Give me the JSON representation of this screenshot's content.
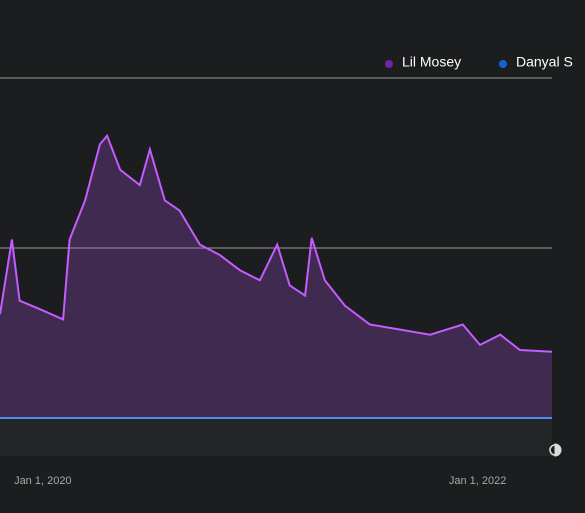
{
  "chart_data": {
    "type": "line",
    "x": [
      "2019-10-21",
      "2019-11-10",
      "2019-11-23",
      "2019-12-27",
      "2020-02-04",
      "2020-02-15",
      "2020-03-12",
      "2020-04-06",
      "2020-04-18",
      "2020-05-10",
      "2020-06-12",
      "2020-06-29",
      "2020-07-24",
      "2020-08-18",
      "2020-09-21",
      "2020-10-24",
      "2020-11-27",
      "2020-12-31",
      "2021-01-29",
      "2021-02-19",
      "2021-03-17",
      "2021-03-28",
      "2021-04-19",
      "2021-05-23",
      "2021-07-04",
      "2021-08-24",
      "2021-10-13",
      "2021-12-07",
      "2022-01-05",
      "2022-02-08",
      "2022-03-13",
      "2022-05-06"
    ],
    "series": [
      {
        "name": "Lil Mosey",
        "color": "#c45cff",
        "legend_color": "#7a1fa8",
        "values": [
          0.61,
          1.05,
          0.69,
          0.64,
          0.58,
          1.05,
          1.28,
          1.61,
          1.66,
          1.46,
          1.37,
          1.58,
          1.28,
          1.22,
          1.02,
          0.96,
          0.87,
          0.81,
          1.02,
          0.78,
          0.72,
          1.06,
          0.81,
          0.66,
          0.55,
          0.52,
          0.49,
          0.55,
          0.43,
          0.49,
          0.4,
          0.39
        ]
      },
      {
        "name": "Danyal S",
        "color": "#4a8ef0",
        "legend_color": "#1a5fd6",
        "values": [
          0,
          0,
          0,
          0,
          0,
          0,
          0,
          0,
          0,
          0,
          0,
          0,
          0,
          0,
          0,
          0,
          0,
          0,
          0,
          0,
          0,
          0,
          0,
          0,
          0,
          0,
          0,
          0,
          0,
          0,
          0,
          0
        ]
      }
    ],
    "xlim": [
      "2019-10-21",
      "2022-05-06"
    ],
    "xticks": [
      {
        "value": "2020-01-01",
        "label": "Jan 1, 2020"
      },
      {
        "value": "2022-01-01",
        "label": "Jan 1, 2022"
      }
    ],
    "ylim": [
      0,
      2
    ],
    "yticks": [
      0,
      1,
      2
    ],
    "grid": true
  }
}
